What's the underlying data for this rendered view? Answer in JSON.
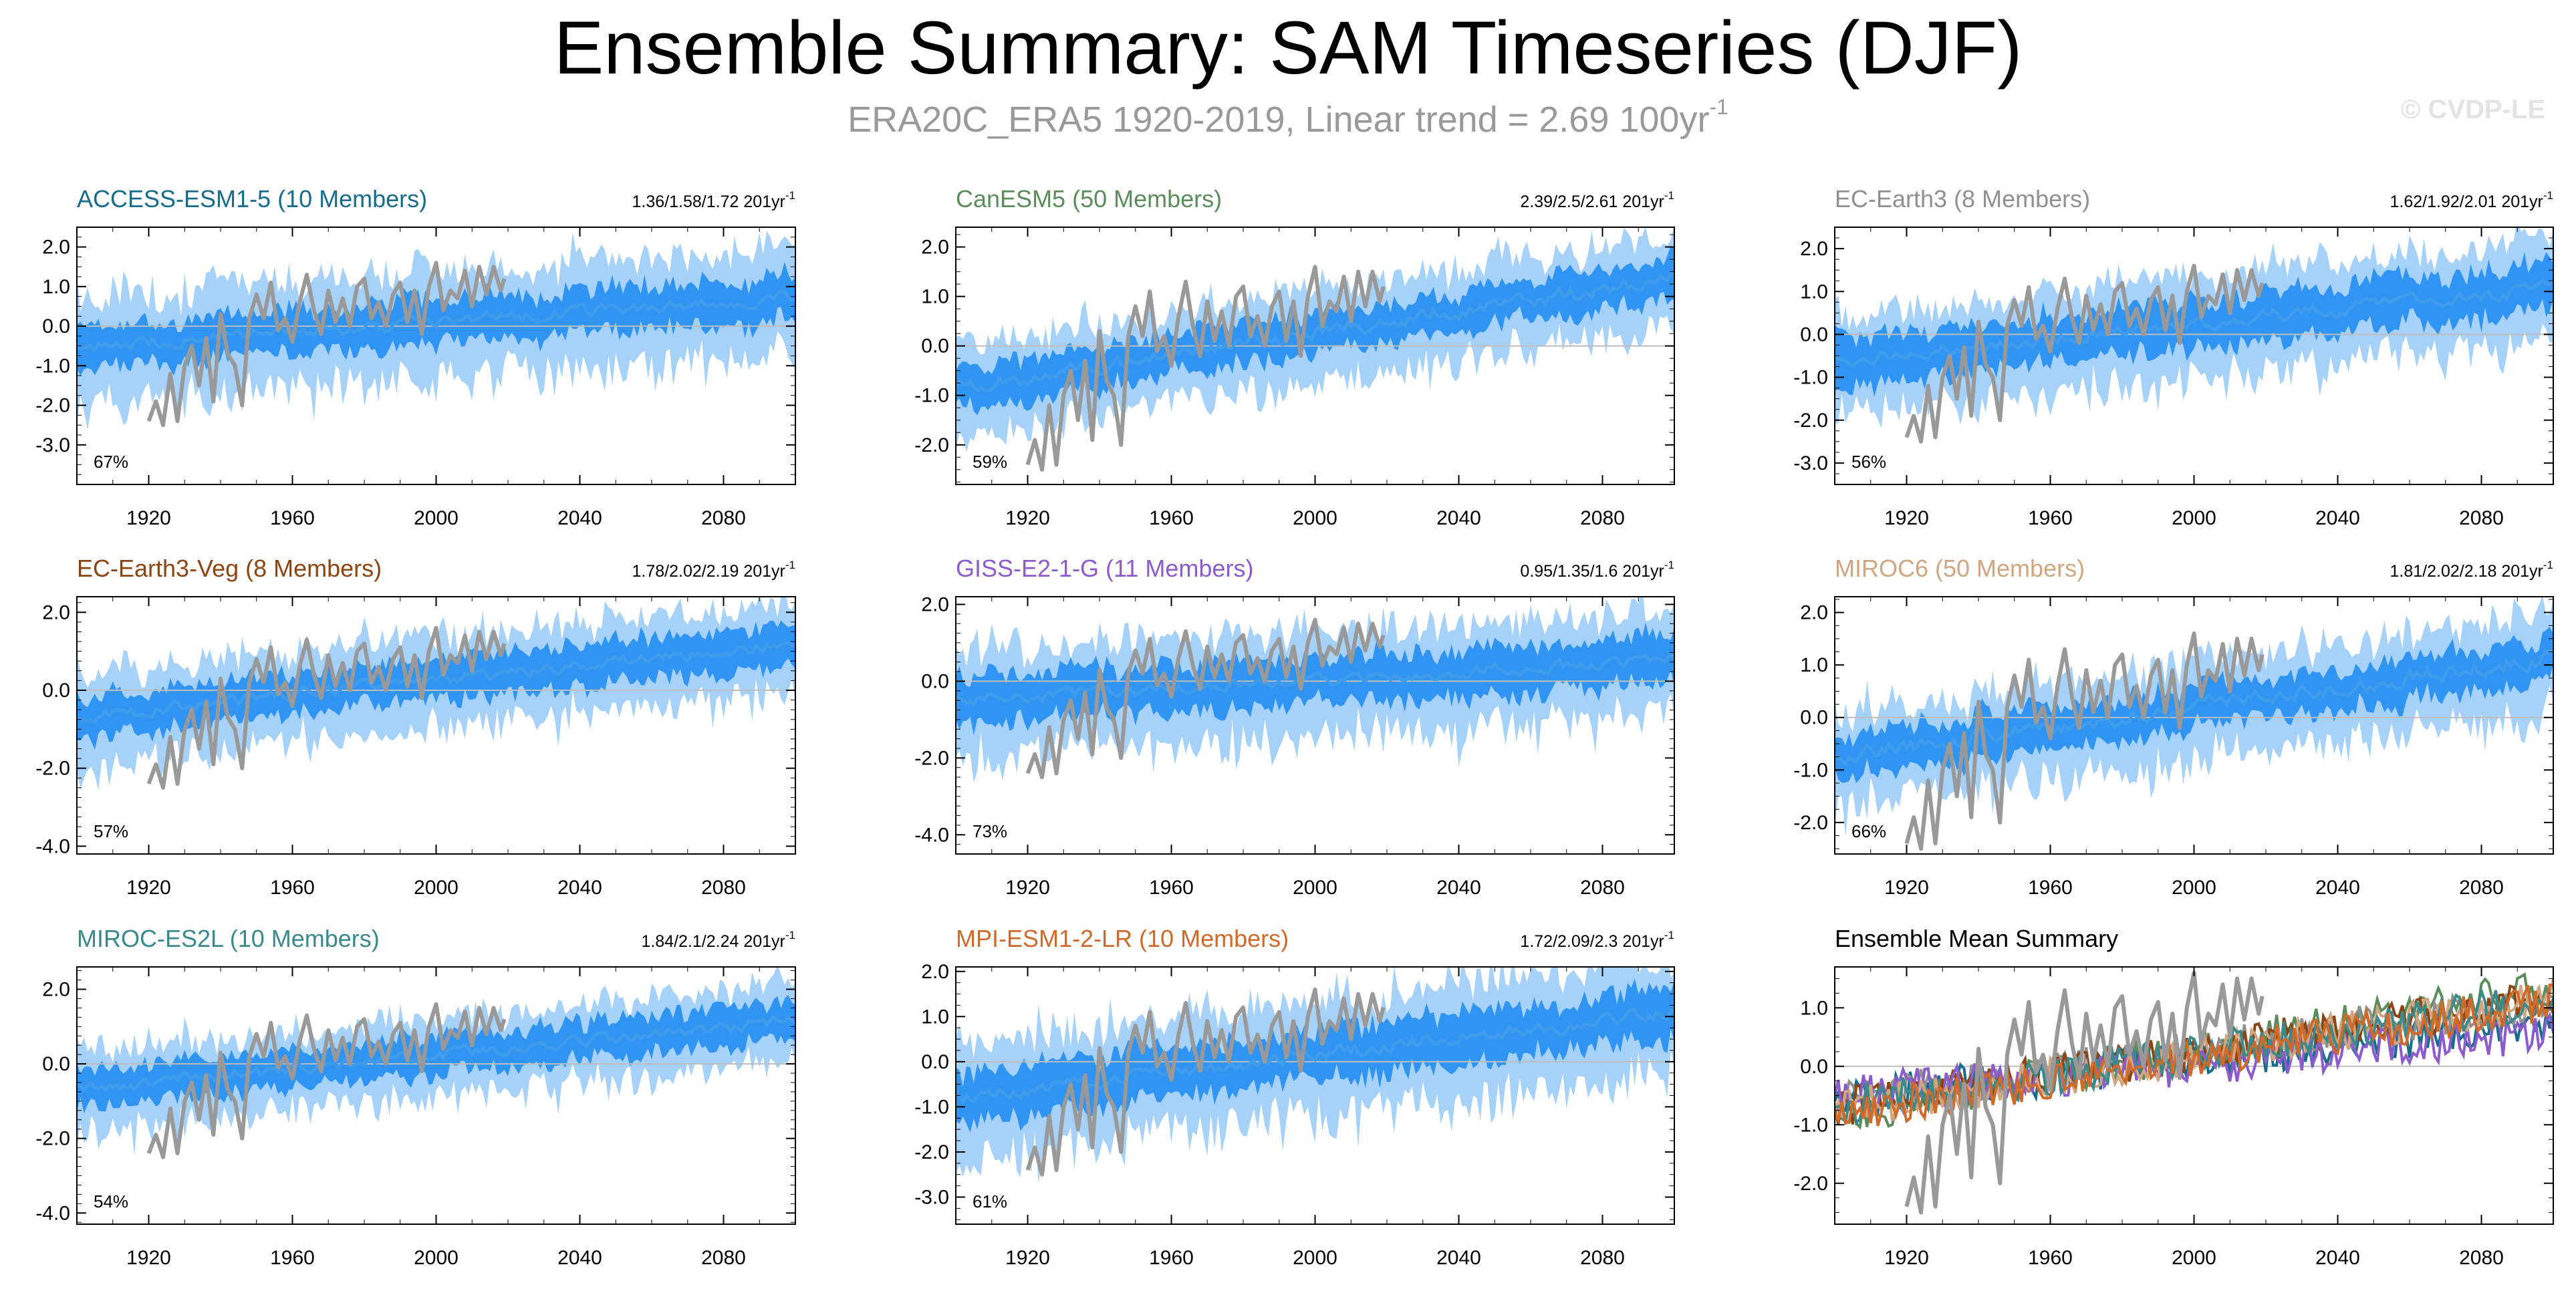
{
  "title": "Ensemble Summary: SAM Timeseries (DJF)",
  "subtitle": {
    "main": "ERA20C_ERA5 1920-2019, Linear trend = 2.69 100yr",
    "superscript": "-1"
  },
  "credit": "© CVDP-LE",
  "colors": {
    "band_outer": "#a6d2fa",
    "band_inner": "#2f94f2",
    "ensemble_mean": "#3f9cec",
    "observations": "#999999",
    "zero_line": "#bdbdbd"
  },
  "chart_data": [
    {
      "type": "area",
      "title": "ACCESS-ESM1-5 (10 Members)",
      "title_color": "#176c8c",
      "trend_text": "1.36/1.58/1.72 201yr",
      "trend_sup": "-1",
      "percent_label": "67%",
      "x_range": [
        1900,
        2100
      ],
      "ylim": [
        -4.0,
        2.5
      ],
      "y_ticks": [
        "2.0",
        "1.0",
        "0.0",
        "-1.0",
        "-2.0",
        "-3.0"
      ],
      "y_tick_values": [
        2,
        1,
        0,
        -1,
        -2,
        -3
      ],
      "x_ticks": [
        "1920",
        "1960",
        "2000",
        "2040",
        "2080"
      ],
      "x_tick_values": [
        1920,
        1960,
        2000,
        2040,
        2080
      ],
      "mean_start": -0.55,
      "mean_end": 0.75,
      "outer_halfwidth": 1.25,
      "inner_halfwidth": 0.55
    },
    {
      "type": "area",
      "title": "CanESM5 (50 Members)",
      "title_color": "#5c8c5c",
      "trend_text": "2.39/2.5/2.61 201yr",
      "trend_sup": "-1",
      "percent_label": "59%",
      "x_range": [
        1900,
        2100
      ],
      "ylim": [
        -2.8,
        2.4
      ],
      "y_ticks": [
        "2.0",
        "1.0",
        "0.0",
        "-1.0",
        "-2.0"
      ],
      "y_tick_values": [
        2,
        1,
        0,
        -1,
        -2
      ],
      "x_ticks": [
        "1920",
        "1960",
        "2000",
        "2040",
        "2080"
      ],
      "x_tick_values": [
        1920,
        1960,
        2000,
        2040,
        2080
      ],
      "mean_start": -0.85,
      "mean_end": 1.4,
      "outer_halfwidth": 0.9,
      "inner_halfwidth": 0.4
    },
    {
      "type": "area",
      "title": "EC-Earth3 (8 Members)",
      "title_color": "#909090",
      "trend_text": "1.62/1.92/2.01 201yr",
      "trend_sup": "-1",
      "percent_label": "56%",
      "x_range": [
        1900,
        2100
      ],
      "ylim": [
        -3.5,
        2.5
      ],
      "y_ticks": [
        "2.0",
        "1.0",
        "0.0",
        "-1.0",
        "-2.0",
        "-3.0"
      ],
      "y_tick_values": [
        2,
        1,
        0,
        -1,
        -2,
        -3
      ],
      "x_ticks": [
        "1920",
        "1960",
        "2000",
        "2040",
        "2080"
      ],
      "x_tick_values": [
        1920,
        1960,
        2000,
        2040,
        2080
      ],
      "mean_start": -0.6,
      "mean_end": 1.1,
      "outer_halfwidth": 1.1,
      "inner_halfwidth": 0.55
    },
    {
      "type": "area",
      "title": "EC-Earth3-Veg (8 Members)",
      "title_color": "#8c4512",
      "trend_text": "1.78/2.02/2.19 201yr",
      "trend_sup": "-1",
      "percent_label": "57%",
      "x_range": [
        1900,
        2100
      ],
      "ylim": [
        -4.2,
        2.4
      ],
      "y_ticks": [
        "2.0",
        "0.0",
        "-2.0",
        "-4.0"
      ],
      "y_tick_values": [
        2,
        0,
        -2,
        -4
      ],
      "x_ticks": [
        "1920",
        "1960",
        "2000",
        "2040",
        "2080"
      ],
      "x_tick_values": [
        1920,
        1960,
        2000,
        2040,
        2080
      ],
      "mean_start": -0.7,
      "mean_end": 1.2,
      "outer_halfwidth": 1.1,
      "inner_halfwidth": 0.55
    },
    {
      "type": "area",
      "title": "GISS-E2-1-G (11 Members)",
      "title_color": "#8c5ccc",
      "trend_text": "0.95/1.35/1.6 201yr",
      "trend_sup": "-1",
      "percent_label": "73%",
      "x_range": [
        1900,
        2100
      ],
      "ylim": [
        -4.5,
        2.2
      ],
      "y_ticks": [
        "2.0",
        "0.0",
        "-2.0",
        "-4.0"
      ],
      "y_tick_values": [
        2,
        0,
        -2,
        -4
      ],
      "x_ticks": [
        "1920",
        "1960",
        "2000",
        "2040",
        "2080"
      ],
      "x_tick_values": [
        1920,
        1960,
        2000,
        2040,
        2080
      ],
      "mean_start": -0.5,
      "mean_end": 0.55,
      "outer_halfwidth": 1.3,
      "inner_halfwidth": 0.6
    },
    {
      "type": "area",
      "title": "MIROC6 (50 Members)",
      "title_color": "#d0a680",
      "trend_text": "1.81/2.02/2.18 201yr",
      "trend_sup": "-1",
      "percent_label": "66%",
      "x_range": [
        1900,
        2100
      ],
      "ylim": [
        -2.6,
        2.3
      ],
      "y_ticks": [
        "2.0",
        "1.0",
        "0.0",
        "-1.0",
        "-2.0"
      ],
      "y_tick_values": [
        2,
        1,
        0,
        -1,
        -2
      ],
      "x_ticks": [
        "1920",
        "1960",
        "2000",
        "2040",
        "2080"
      ],
      "x_tick_values": [
        1920,
        1960,
        2000,
        2040,
        2080
      ],
      "mean_start": -0.75,
      "mean_end": 1.15,
      "outer_halfwidth": 0.85,
      "inner_halfwidth": 0.4
    },
    {
      "type": "area",
      "title": "MIROC-ES2L (10 Members)",
      "title_color": "#3a8a8c",
      "trend_text": "1.84/2.1/2.24 201yr",
      "trend_sup": "-1",
      "percent_label": "54%",
      "x_range": [
        1900,
        2100
      ],
      "ylim": [
        -4.3,
        2.6
      ],
      "y_ticks": [
        "2.0",
        "0.0",
        "-2.0",
        "-4.0"
      ],
      "y_tick_values": [
        2,
        0,
        -2,
        -4
      ],
      "x_ticks": [
        "1920",
        "1960",
        "2000",
        "2040",
        "2080"
      ],
      "x_tick_values": [
        1920,
        1960,
        2000,
        2040,
        2080
      ],
      "mean_start": -0.7,
      "mean_end": 1.15,
      "outer_halfwidth": 1.0,
      "inner_halfwidth": 0.5
    },
    {
      "type": "area",
      "title": "MPI-ESM1-2-LR (10 Members)",
      "title_color": "#d06a2a",
      "trend_text": "1.72/2.09/2.3 201yr",
      "trend_sup": "-1",
      "percent_label": "61%",
      "x_range": [
        1900,
        2100
      ],
      "ylim": [
        -3.6,
        2.1
      ],
      "y_ticks": [
        "2.0",
        "1.0",
        "0.0",
        "-1.0",
        "-2.0",
        "-3.0"
      ],
      "y_tick_values": [
        2,
        1,
        0,
        -1,
        -2,
        -3
      ],
      "x_ticks": [
        "1920",
        "1960",
        "2000",
        "2040",
        "2080"
      ],
      "x_tick_values": [
        1920,
        1960,
        2000,
        2040,
        2080
      ],
      "mean_start": -0.8,
      "mean_end": 1.1,
      "outer_halfwidth": 1.2,
      "inner_halfwidth": 0.55
    },
    {
      "type": "line",
      "title": "Ensemble Mean Summary",
      "title_color": "#000000",
      "trend_text": "",
      "trend_sup": "",
      "percent_label": "",
      "x_range": [
        1900,
        2100
      ],
      "ylim": [
        -2.7,
        1.7
      ],
      "y_ticks": [
        "1.0",
        "0.0",
        "-1.0",
        "-2.0"
      ],
      "y_tick_values": [
        1,
        0,
        -1,
        -2
      ],
      "x_ticks": [
        "1920",
        "1960",
        "2000",
        "2040",
        "2080"
      ],
      "x_tick_values": [
        1920,
        1960,
        2000,
        2040,
        2080
      ],
      "series": [
        {
          "name": "ACCESS-ESM1-5",
          "color": "#176c8c",
          "start": -0.55,
          "end": 0.75
        },
        {
          "name": "CanESM5",
          "color": "#5c8c5c",
          "start": -0.85,
          "end": 1.4
        },
        {
          "name": "EC-Earth3",
          "color": "#909090",
          "start": -0.6,
          "end": 1.1
        },
        {
          "name": "EC-Earth3-Veg",
          "color": "#8c4512",
          "start": -0.7,
          "end": 1.2
        },
        {
          "name": "GISS-E2-1-G",
          "color": "#8c5ccc",
          "start": -0.5,
          "end": 0.55
        },
        {
          "name": "MIROC6",
          "color": "#d0a680",
          "start": -0.75,
          "end": 1.15
        },
        {
          "name": "MIROC-ES2L",
          "color": "#3a8a8c",
          "start": -0.7,
          "end": 1.15
        },
        {
          "name": "MPI-ESM1-2-LR",
          "color": "#d06a2a",
          "start": -0.8,
          "end": 1.1
        }
      ]
    }
  ],
  "observations": {
    "name": "ERA20C_ERA5",
    "years": [
      1920,
      1922,
      1924,
      1926,
      1928,
      1930,
      1932,
      1934,
      1936,
      1938,
      1940,
      1942,
      1944,
      1946,
      1948,
      1950,
      1952,
      1954,
      1956,
      1958,
      1960,
      1962,
      1964,
      1966,
      1968,
      1970,
      1972,
      1974,
      1976,
      1978,
      1980,
      1982,
      1984,
      1986,
      1988,
      1990,
      1992,
      1994,
      1996,
      1998,
      2000,
      2002,
      2004,
      2006,
      2008,
      2010,
      2012,
      2014,
      2016,
      2018,
      2019
    ],
    "values": [
      -2.4,
      -1.9,
      -2.5,
      -1.2,
      -2.4,
      -1.0,
      -0.5,
      -1.5,
      -0.3,
      -1.9,
      0.3,
      -0.7,
      -1.0,
      -2.0,
      0.2,
      0.8,
      0.2,
      1.1,
      -0.1,
      0.2,
      -0.4,
      0.6,
      1.3,
      0.4,
      -0.2,
      0.9,
      0.1,
      0.7,
      0.0,
      1.0,
      1.2,
      0.2,
      0.6,
      0.0,
      0.8,
      1.1,
      0.1,
      0.9,
      -0.2,
      1.0,
      1.6,
      0.4,
      0.9,
      0.7,
      1.4,
      0.5,
      1.5,
      0.8,
      1.5,
      0.9,
      1.2
    ]
  }
}
